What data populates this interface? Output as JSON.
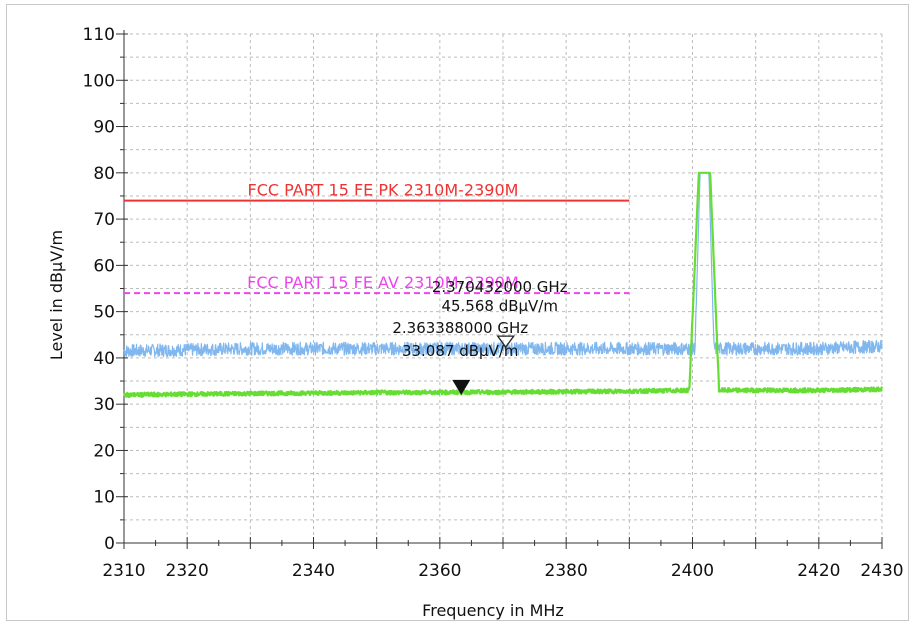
{
  "chart_data": {
    "type": "line",
    "title": "",
    "xlabel": "Frequency in MHz",
    "ylabel": "Level in dBµV/m",
    "xlim": [
      2310,
      2430
    ],
    "ylim": [
      0,
      110
    ],
    "x_ticks": [
      2310,
      2320,
      2340,
      2360,
      2380,
      2400,
      2420,
      2430
    ],
    "y_ticks": [
      0,
      10,
      20,
      30,
      40,
      50,
      60,
      70,
      80,
      90,
      100,
      110
    ],
    "grid": true,
    "series": [
      {
        "color": "#7fb7ee",
        "x": [
          2310,
          2330,
          2350,
          2370,
          2390,
          2400.4,
          2401.2,
          2402.6,
          2403.4,
          2410,
          2420,
          2430
        ],
        "y": [
          41.5,
          42.0,
          42.0,
          42.0,
          42.0,
          42.0,
          80,
          80,
          42.0,
          42.0,
          42.0,
          42.5
        ]
      },
      {
        "color": "#66dd33",
        "x": [
          2310,
          2330,
          2350,
          2370,
          2390,
          2399.5,
          2401.0,
          2402.8,
          2404.2,
          2410,
          2420,
          2430
        ],
        "y": [
          32.0,
          32.3,
          32.5,
          32.6,
          32.8,
          33.0,
          80,
          80,
          33.0,
          33.0,
          33.0,
          33.2
        ]
      }
    ],
    "limits": [
      {
        "label": "FCC PART 15 FE PK 2310M-2390M",
        "y": 74,
        "x_range": [
          2310,
          2390
        ],
        "color": "#ee3333",
        "style": "solid"
      },
      {
        "label": "FCC PART 15 FE AV 2310M-2390M",
        "y": 54,
        "x_range": [
          2310,
          2390
        ],
        "color": "#ee44ee",
        "style": "dashed"
      }
    ],
    "markers": [
      {
        "frequency": "2.370432000 GHz",
        "level": "45.568 dBµV/m",
        "x": 2370.43,
        "y": 45.568,
        "style": "open"
      },
      {
        "frequency": "2.363388000 GHz",
        "level": "33.087 dBµV/m",
        "x": 2363.39,
        "y": 33.087,
        "style": "filled"
      }
    ]
  }
}
